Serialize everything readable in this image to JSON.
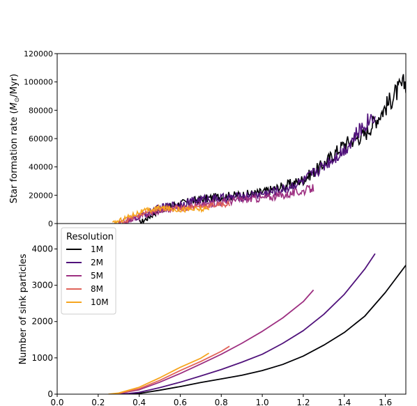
{
  "chart_data": [
    {
      "type": "line",
      "ylabel": "Star formation rate (",
      "ylabel_math": "M",
      "ylabel_sub": "⊙",
      "ylabel_tail": "/Myr)",
      "xlim": [
        0.0,
        1.7
      ],
      "ylim": [
        0,
        120000
      ],
      "yticks": [
        "0",
        "20000",
        "40000",
        "60000",
        "80000",
        "100000",
        "120000"
      ],
      "ytick_values": [
        0,
        20000,
        40000,
        60000,
        80000,
        100000,
        120000
      ],
      "series": [
        {
          "name": "1M",
          "color": "#000004",
          "x_range": [
            0.4,
            1.7
          ],
          "trend_x": [
            0.4,
            0.45,
            0.5,
            0.6,
            0.7,
            0.8,
            0.9,
            1.0,
            1.1,
            1.2,
            1.3,
            1.4,
            1.5,
            1.6,
            1.65,
            1.7
          ],
          "trend_y": [
            0,
            5000,
            10000,
            14000,
            17000,
            19000,
            20000,
            22000,
            26000,
            31000,
            42000,
            56000,
            63000,
            82000,
            92000,
            100000
          ],
          "noise": 3500
        },
        {
          "name": "2M",
          "color": "#50127b",
          "x_range": [
            0.33,
            1.55
          ],
          "trend_x": [
            0.33,
            0.4,
            0.5,
            0.6,
            0.7,
            0.8,
            0.9,
            1.0,
            1.1,
            1.2,
            1.3,
            1.4,
            1.5,
            1.55
          ],
          "trend_y": [
            0,
            5000,
            11000,
            14000,
            17000,
            18000,
            19000,
            21000,
            24000,
            30000,
            41000,
            52000,
            70000,
            78000
          ],
          "noise": 3500
        },
        {
          "name": "5M",
          "color": "#9d2f81",
          "x_range": [
            0.3,
            1.25
          ],
          "trend_x": [
            0.3,
            0.4,
            0.5,
            0.6,
            0.7,
            0.8,
            0.9,
            1.0,
            1.1,
            1.2,
            1.25
          ],
          "trend_y": [
            0,
            5000,
            9000,
            11000,
            13000,
            15000,
            17000,
            18000,
            20000,
            23000,
            25000
          ],
          "noise": 3000
        },
        {
          "name": "8M",
          "color": "#e06259",
          "x_range": [
            0.3,
            0.84
          ],
          "trend_x": [
            0.3,
            0.4,
            0.5,
            0.6,
            0.7,
            0.84
          ],
          "trend_y": [
            0,
            6000,
            10000,
            11000,
            12000,
            14000
          ],
          "noise": 2500
        },
        {
          "name": "10M",
          "color": "#f6a51e",
          "x_range": [
            0.27,
            0.74
          ],
          "trend_x": [
            0.27,
            0.35,
            0.4,
            0.5,
            0.6,
            0.74
          ],
          "trend_y": [
            0,
            5000,
            8000,
            11000,
            10000,
            10000
          ],
          "noise": 2500
        }
      ]
    },
    {
      "type": "line",
      "xlabel": "",
      "ylabel": "Number of sink particles",
      "xlim": [
        0.0,
        1.7
      ],
      "ylim": [
        0,
        4700
      ],
      "xticks": [
        "0.0",
        "0.2",
        "0.4",
        "0.6",
        "0.8",
        "1.0",
        "1.2",
        "1.4",
        "1.6"
      ],
      "xtick_values": [
        0.0,
        0.2,
        0.4,
        0.6,
        0.8,
        1.0,
        1.2,
        1.4,
        1.6
      ],
      "yticks": [
        "0",
        "1000",
        "2000",
        "3000",
        "4000"
      ],
      "ytick_values": [
        0,
        1000,
        2000,
        3000,
        4000
      ],
      "legend": {
        "title": "Resolution",
        "placement": "top-left"
      },
      "series": [
        {
          "name": "1M",
          "color": "#000004",
          "x": [
            0.3,
            0.4,
            0.5,
            0.6,
            0.7,
            0.8,
            0.9,
            1.0,
            1.1,
            1.2,
            1.3,
            1.4,
            1.5,
            1.6,
            1.7
          ],
          "y": [
            0,
            20,
            110,
            210,
            320,
            420,
            520,
            650,
            820,
            1050,
            1350,
            1700,
            2150,
            2800,
            3550
          ]
        },
        {
          "name": "2M",
          "color": "#50127b",
          "x": [
            0.27,
            0.35,
            0.4,
            0.5,
            0.6,
            0.7,
            0.8,
            0.9,
            1.0,
            1.1,
            1.2,
            1.3,
            1.4,
            1.5,
            1.55
          ],
          "y": [
            0,
            20,
            50,
            180,
            330,
            500,
            680,
            880,
            1100,
            1400,
            1750,
            2200,
            2750,
            3450,
            3870
          ]
        },
        {
          "name": "5M",
          "color": "#9d2f81",
          "x": [
            0.27,
            0.3,
            0.4,
            0.5,
            0.6,
            0.7,
            0.8,
            0.9,
            1.0,
            1.1,
            1.2,
            1.25
          ],
          "y": [
            0,
            20,
            120,
            330,
            570,
            830,
            1100,
            1400,
            1730,
            2100,
            2550,
            2870
          ]
        },
        {
          "name": "8M",
          "color": "#e06259",
          "x": [
            0.27,
            0.3,
            0.4,
            0.5,
            0.6,
            0.7,
            0.8,
            0.84
          ],
          "y": [
            0,
            20,
            150,
            380,
            650,
            900,
            1180,
            1320
          ]
        },
        {
          "name": "10M",
          "color": "#f6a51e",
          "x": [
            0.25,
            0.3,
            0.4,
            0.5,
            0.6,
            0.7,
            0.74
          ],
          "y": [
            0,
            30,
            190,
            450,
            740,
            990,
            1130
          ]
        }
      ]
    }
  ]
}
